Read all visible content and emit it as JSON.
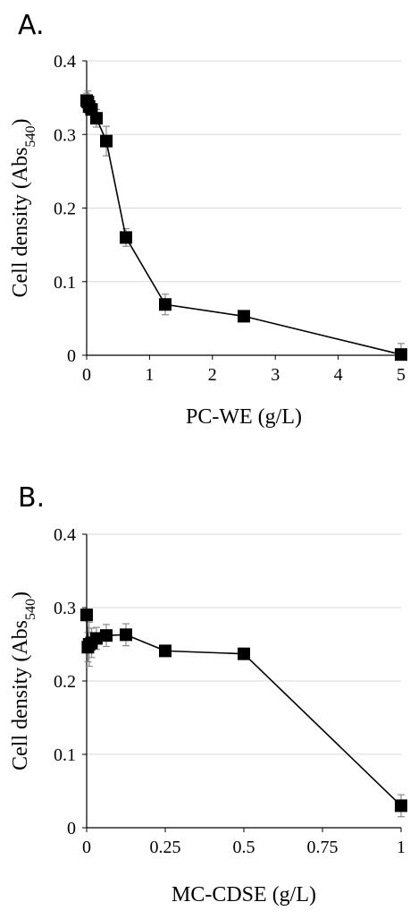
{
  "chart_data": [
    {
      "panel_label": "A.",
      "type": "line",
      "markers": "square",
      "x": [
        0,
        0.0195,
        0.039,
        0.078,
        0.156,
        0.3125,
        0.625,
        1.25,
        2.5,
        5
      ],
      "y": [
        0.346,
        0.344,
        0.338,
        0.334,
        0.322,
        0.291,
        0.16,
        0.069,
        0.053,
        0.001
      ],
      "error": [
        0.01,
        0.015,
        0.01,
        0.008,
        0.012,
        0.02,
        0.012,
        0.014,
        0.005,
        0.015
      ],
      "xlabel": "PC-WE (g/L)",
      "ylabel": "Cell density (Abs",
      "ylabel_sub": "540",
      "ylabel_end": ")",
      "xlim": [
        0,
        5
      ],
      "ylim": [
        0,
        0.4
      ],
      "xticks": [
        0,
        1,
        2,
        3,
        4,
        5
      ],
      "xtick_labels": [
        "0",
        "1",
        "2",
        "3",
        "4",
        "5"
      ],
      "yticks": [
        0,
        0.1,
        0.2,
        0.3,
        0.4
      ],
      "ytick_labels": [
        "0",
        "0.1",
        "0.2",
        "0.3",
        "0.4"
      ],
      "grid": "horizontal"
    },
    {
      "panel_label": "B.",
      "type": "line",
      "markers": "square",
      "x": [
        0,
        0.004,
        0.0078,
        0.0156,
        0.031,
        0.0625,
        0.125,
        0.25,
        0.5,
        1
      ],
      "y": [
        0.29,
        0.246,
        0.25,
        0.252,
        0.258,
        0.262,
        0.263,
        0.241,
        0.237,
        0.03
      ],
      "error": [
        0.008,
        0.02,
        0.03,
        0.02,
        0.015,
        0.015,
        0.015,
        0.007,
        0.007,
        0.015
      ],
      "xlabel": "MC-CDSE (g/L)",
      "ylabel": "Cell density (Abs",
      "ylabel_sub": "540",
      "ylabel_end": ")",
      "xlim": [
        0,
        1
      ],
      "ylim": [
        0,
        0.4
      ],
      "xticks": [
        0,
        0.25,
        0.5,
        0.75,
        1
      ],
      "xtick_labels": [
        "0",
        "0.25",
        "0.5",
        "0.75",
        "1"
      ],
      "yticks": [
        0,
        0.1,
        0.2,
        0.3,
        0.4
      ],
      "ytick_labels": [
        "0",
        "0.1",
        "0.2",
        "0.3",
        "0.4"
      ],
      "grid": "horizontal"
    }
  ]
}
